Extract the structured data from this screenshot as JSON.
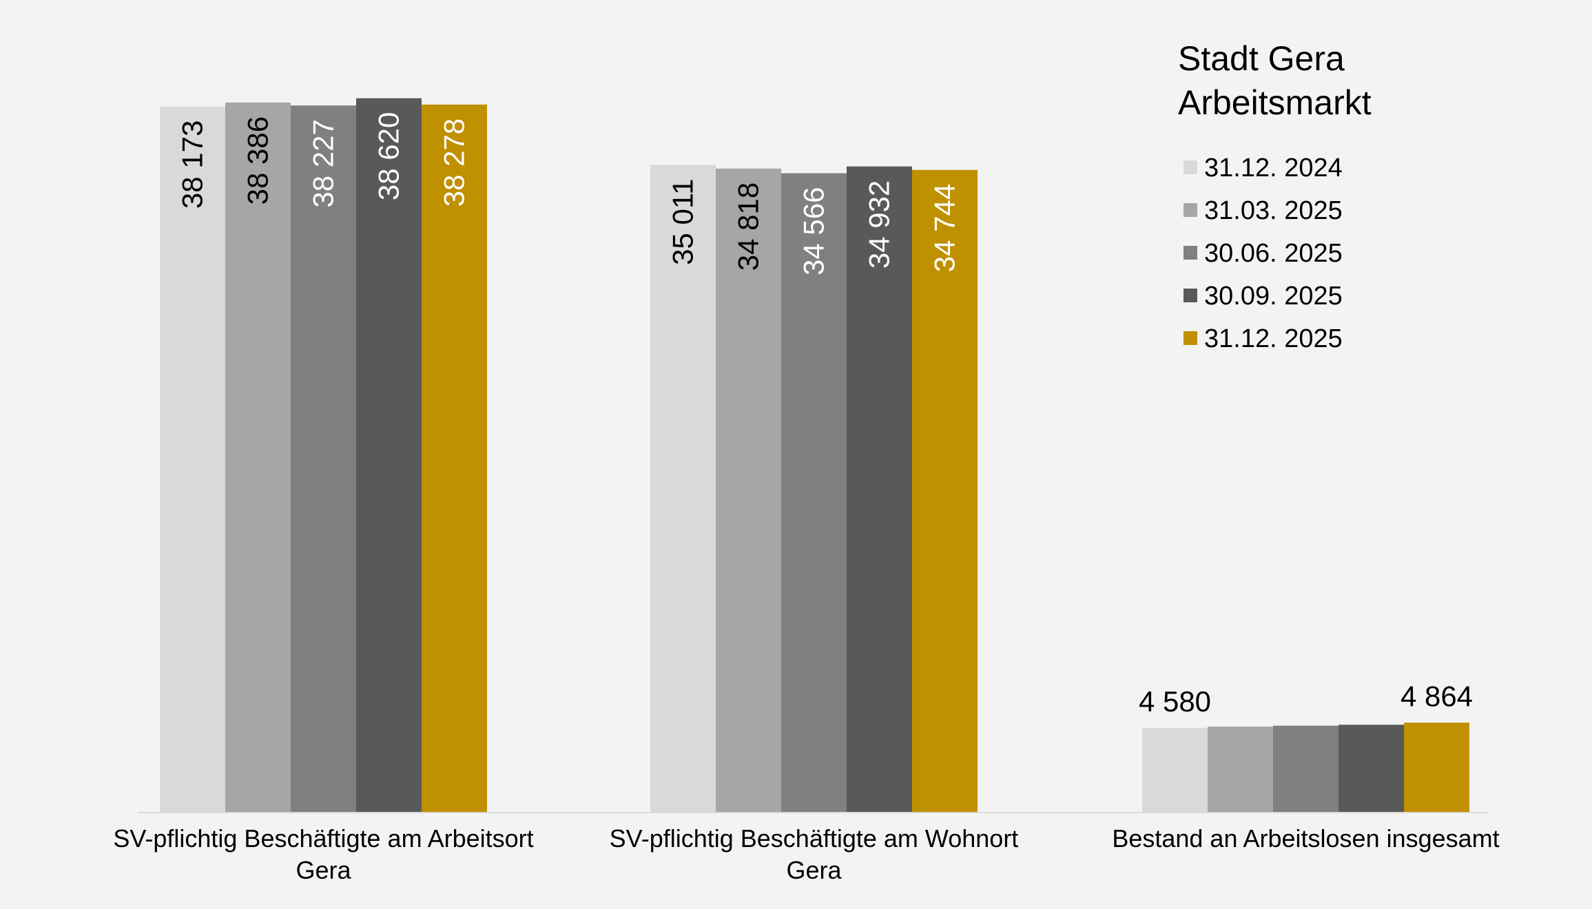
{
  "chart_data": {
    "type": "bar",
    "title_lines": [
      "Stadt Gera",
      "Arbeitsmarkt"
    ],
    "categories": [
      [
        "SV-pflichtig Beschäftigte am Arbeitsort",
        "Gera"
      ],
      [
        "SV-pflichtig Beschäftigte am Wohnort",
        "Gera"
      ],
      [
        "Bestand an Arbeitslosen insgesamt"
      ]
    ],
    "series": [
      {
        "name": "31.12. 2024",
        "color": "#d9d9d9",
        "label_color": "#000000",
        "values": [
          38173,
          35011,
          4580
        ],
        "labels": [
          "38 173",
          "35 011",
          "4 580"
        ]
      },
      {
        "name": "31.03. 2025",
        "color": "#a6a6a6",
        "label_color": "#000000",
        "values": [
          38386,
          34818,
          4650
        ],
        "labels": [
          "38 386",
          "34 818",
          ""
        ]
      },
      {
        "name": "30.06. 2025",
        "color": "#808080",
        "label_color": "#ffffff",
        "values": [
          38227,
          34566,
          4700
        ],
        "labels": [
          "38 227",
          "34 566",
          ""
        ]
      },
      {
        "name": "30.09. 2025",
        "color": "#595959",
        "label_color": "#ffffff",
        "values": [
          38620,
          34932,
          4750
        ],
        "labels": [
          "38 620",
          "34 932",
          ""
        ]
      },
      {
        "name": "31.12. 2025",
        "color": "#bf9000",
        "label_color": "#ffffff",
        "values": [
          38278,
          34744,
          4864
        ],
        "labels": [
          "38 278",
          "34 744",
          "4 864"
        ]
      }
    ],
    "ylim": [
      0,
      39500
    ],
    "grid": false,
    "legend_position": "top-right"
  }
}
